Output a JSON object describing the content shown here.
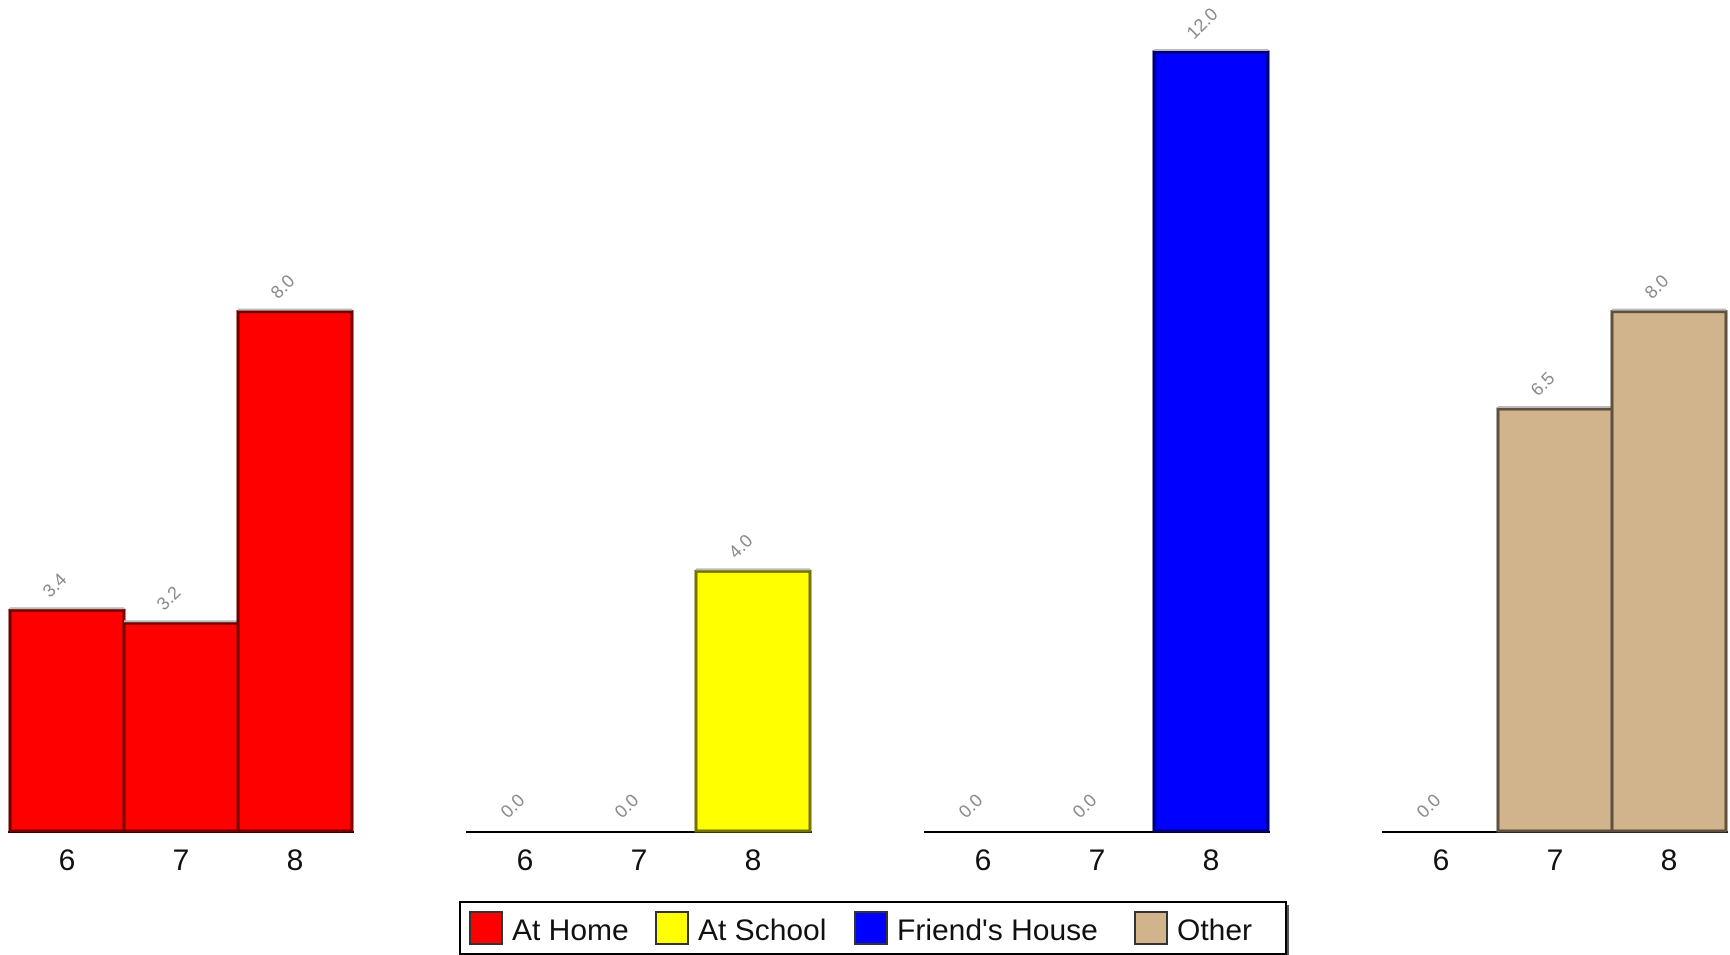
{
  "chart_data": {
    "type": "bar",
    "layout": "small-multiples",
    "categories": [
      "6",
      "7",
      "8"
    ],
    "ylim": [
      0,
      12
    ],
    "grid": false,
    "legend_position": "bottom-center",
    "series": [
      {
        "name": "At Home",
        "color": "#ff0000",
        "values": [
          3.4,
          3.2,
          8.0
        ]
      },
      {
        "name": "At School",
        "color": "#ffff00",
        "values": [
          0.0,
          0.0,
          4.0
        ]
      },
      {
        "name": "Friend's House",
        "color": "#0000ff",
        "values": [
          0.0,
          0.0,
          12.0
        ]
      },
      {
        "name": "Other",
        "color": "#d2b48c",
        "values": [
          0.0,
          6.5,
          8.0
        ]
      }
    ]
  }
}
